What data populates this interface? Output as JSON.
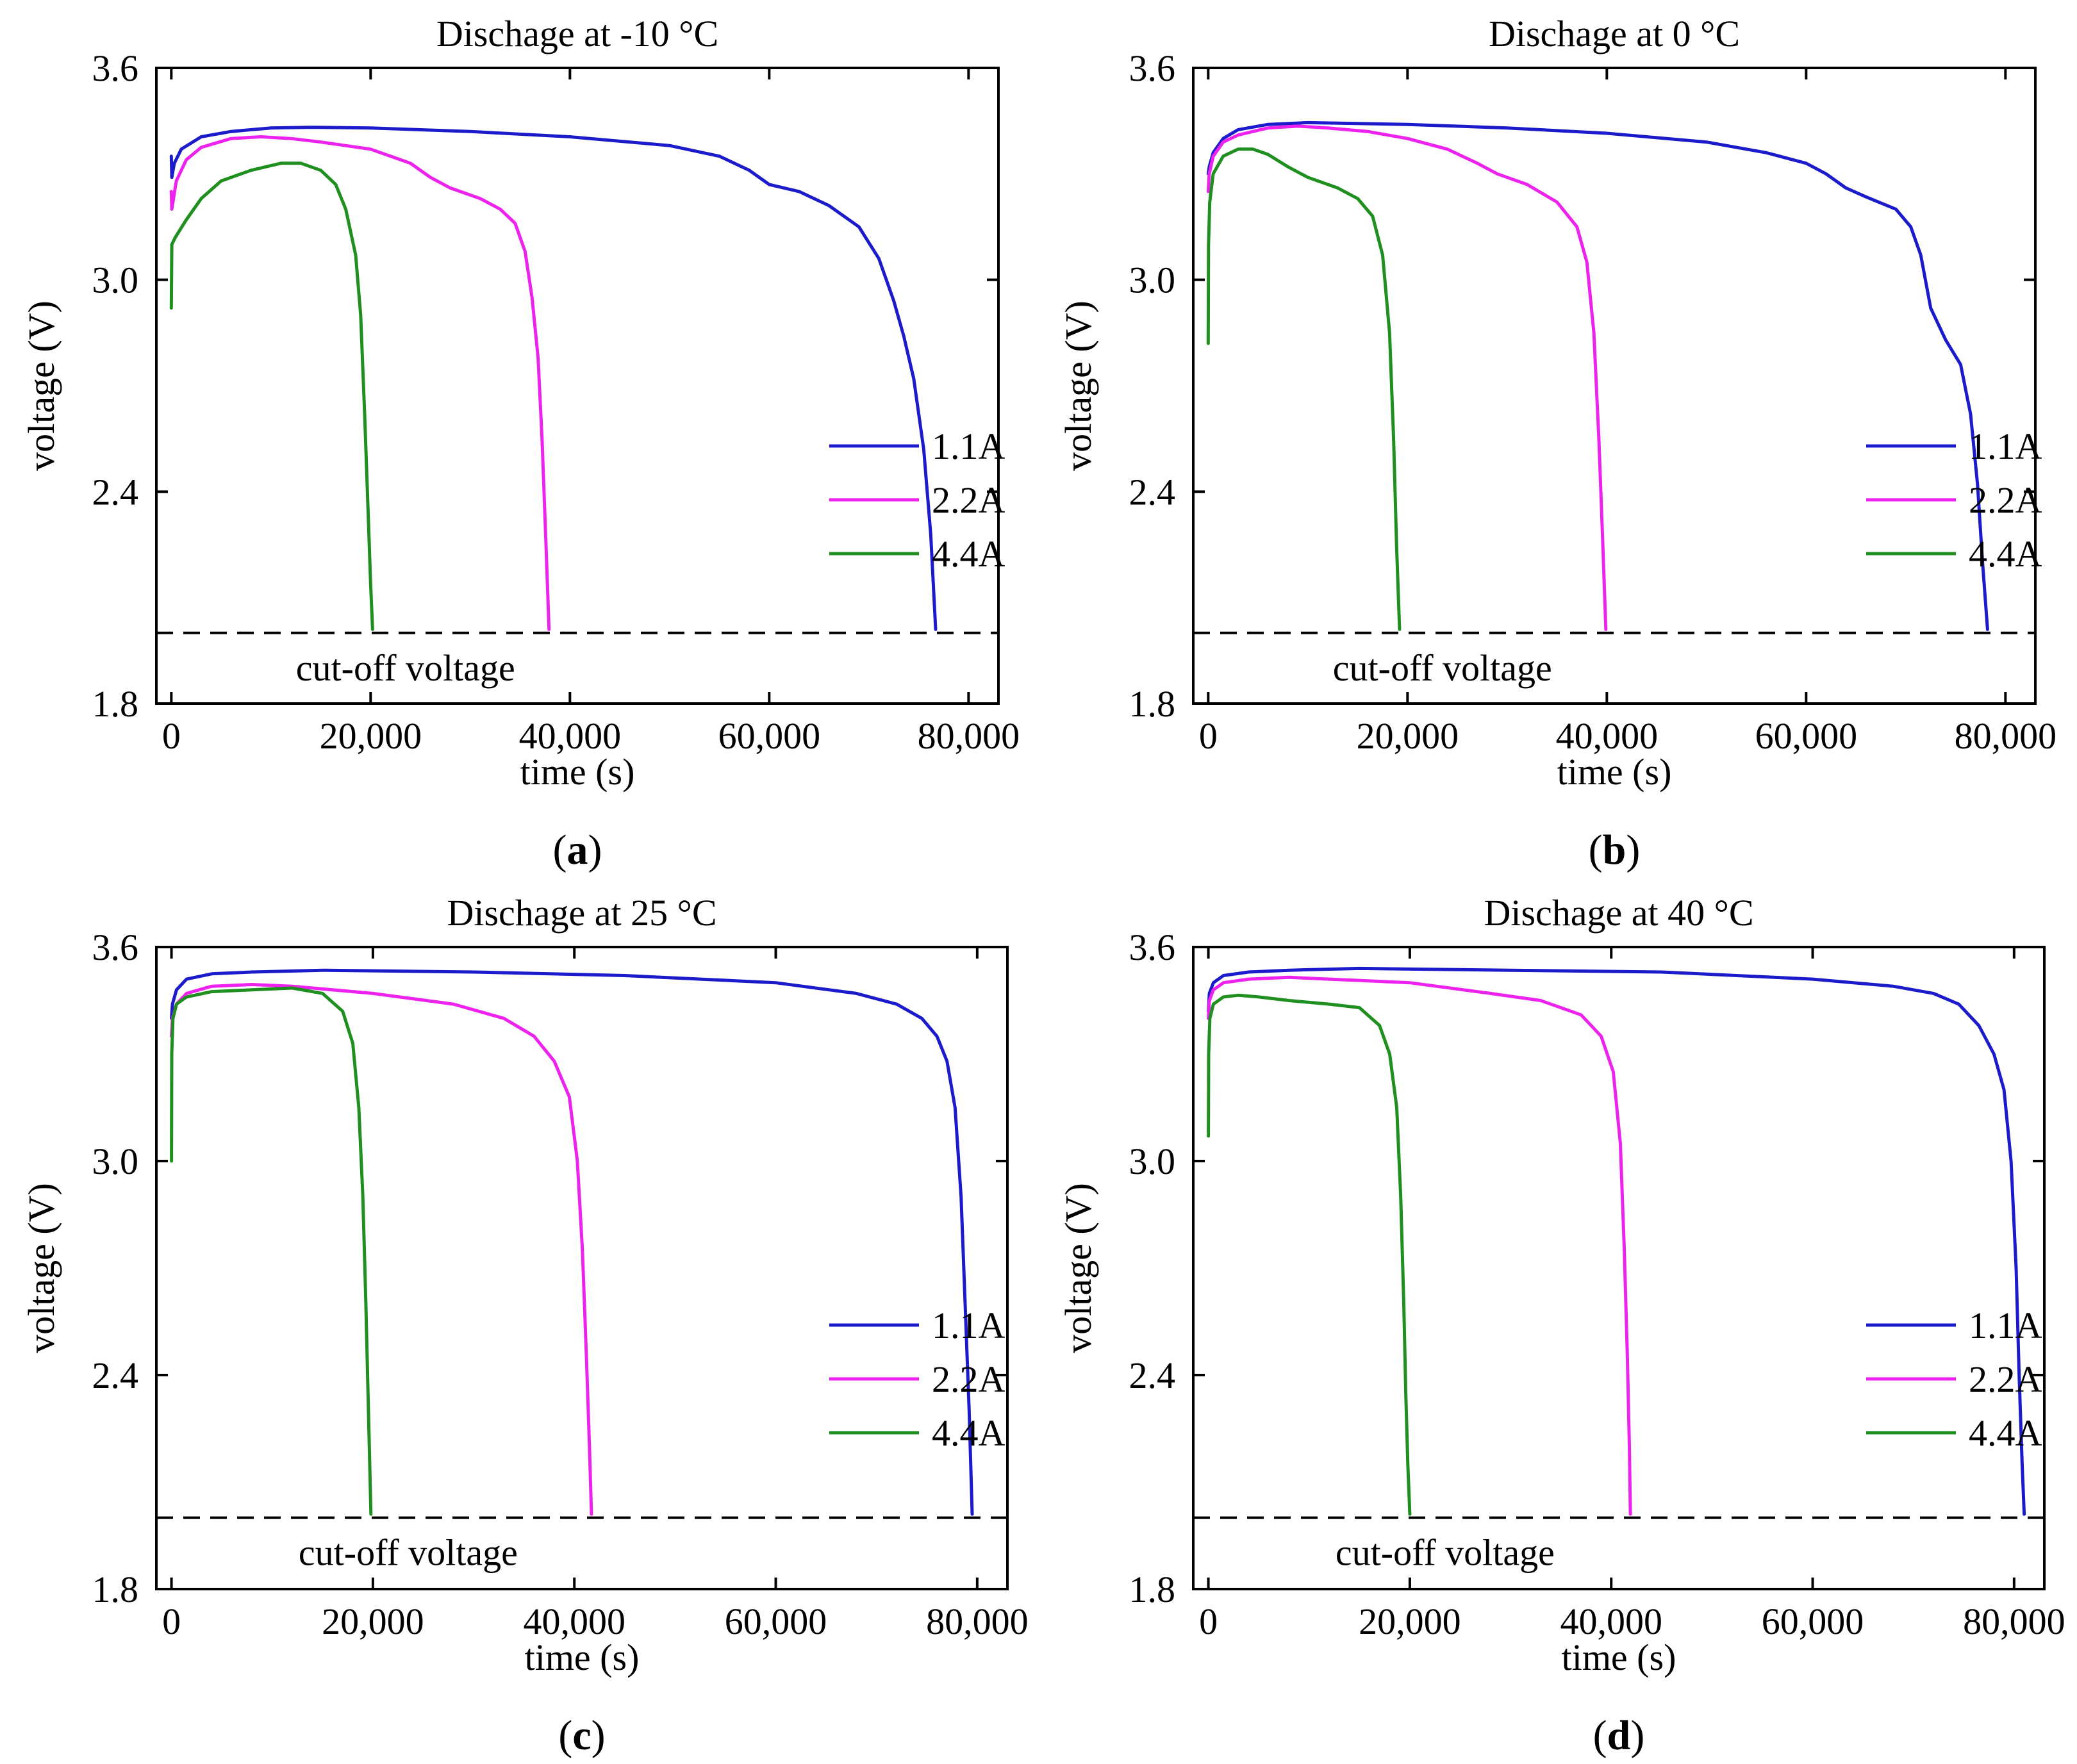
{
  "chart_data": [
    {
      "type": "line",
      "panel_label": "a",
      "title": "Dischage at -10 °C",
      "xlabel": "time (s)",
      "ylabel": "voltage (V)",
      "xlim": [
        -1500,
        83000
      ],
      "ylim": [
        1.8,
        3.6
      ],
      "xticks": [
        0,
        20000,
        40000,
        60000,
        80000
      ],
      "xtick_labels": [
        "0",
        "20,000",
        "40,000",
        "60,000",
        "80,000"
      ],
      "yticks": [
        1.8,
        2.4,
        3.0,
        3.6
      ],
      "ytick_labels": [
        "1.8",
        "2.4",
        "3.0",
        "3.6"
      ],
      "cutoff": {
        "value": 2.0,
        "label": "cut-off voltage"
      },
      "legend": "right",
      "series": [
        {
          "name": "1.1A",
          "color": "#1b1bcc",
          "x": [
            0,
            50,
            300,
            1000,
            3000,
            6000,
            10000,
            14000,
            20000,
            30000,
            40000,
            50000,
            55000,
            58000,
            60000,
            63000,
            66000,
            69000,
            71000,
            72500,
            73500,
            74500,
            75500,
            76200,
            76700
          ],
          "y": [
            3.35,
            3.29,
            3.33,
            3.37,
            3.405,
            3.42,
            3.43,
            3.432,
            3.43,
            3.42,
            3.405,
            3.38,
            3.35,
            3.31,
            3.27,
            3.25,
            3.21,
            3.15,
            3.06,
            2.94,
            2.84,
            2.72,
            2.52,
            2.28,
            2.01
          ]
        },
        {
          "name": "2.2A",
          "color": "#ee22ee",
          "x": [
            0,
            50,
            500,
            1500,
            3000,
            6000,
            9000,
            12000,
            15000,
            20000,
            24000,
            26000,
            28000,
            31000,
            33000,
            34500,
            35500,
            36200,
            36800,
            37200,
            37600,
            37900
          ],
          "y": [
            3.25,
            3.2,
            3.28,
            3.34,
            3.375,
            3.4,
            3.405,
            3.4,
            3.39,
            3.37,
            3.33,
            3.29,
            3.26,
            3.23,
            3.2,
            3.16,
            3.08,
            2.95,
            2.78,
            2.55,
            2.25,
            2.01
          ]
        },
        {
          "name": "4.4A",
          "color": "#1f8f1f",
          "x": [
            0,
            50,
            400,
            1500,
            3000,
            5000,
            8000,
            11000,
            13000,
            15000,
            16500,
            17500,
            18500,
            19000,
            19400,
            19700,
            20000,
            20200
          ],
          "y": [
            2.92,
            3.1,
            3.12,
            3.17,
            3.23,
            3.28,
            3.31,
            3.33,
            3.33,
            3.31,
            3.27,
            3.2,
            3.07,
            2.9,
            2.62,
            2.38,
            2.14,
            2.01
          ]
        }
      ]
    },
    {
      "type": "line",
      "panel_label": "b",
      "title": "Dischage at 0 °C",
      "xlabel": "time (s)",
      "ylabel": "voltage (V)",
      "xlim": [
        -1500,
        83000
      ],
      "ylim": [
        1.8,
        3.6
      ],
      "xticks": [
        0,
        20000,
        40000,
        60000,
        80000
      ],
      "xtick_labels": [
        "0",
        "20,000",
        "40,000",
        "60,000",
        "80,000"
      ],
      "yticks": [
        1.8,
        2.4,
        3.0,
        3.6
      ],
      "ytick_labels": [
        "1.8",
        "2.4",
        "3.0",
        "3.6"
      ],
      "cutoff": {
        "value": 2.0,
        "label": "cut-off voltage"
      },
      "legend": "right",
      "series": [
        {
          "name": "1.1A",
          "color": "#1b1bcc",
          "x": [
            0,
            100,
            500,
            1500,
            3000,
            6000,
            10000,
            20000,
            30000,
            40000,
            50000,
            56000,
            60000,
            62000,
            64000,
            66000,
            69000,
            70500,
            71500,
            72500,
            74000,
            75500,
            76500,
            77200,
            77700,
            78200
          ],
          "y": [
            3.3,
            3.32,
            3.36,
            3.4,
            3.425,
            3.44,
            3.445,
            3.44,
            3.43,
            3.415,
            3.39,
            3.36,
            3.33,
            3.3,
            3.26,
            3.235,
            3.2,
            3.15,
            3.07,
            2.92,
            2.83,
            2.76,
            2.62,
            2.42,
            2.2,
            2.01
          ]
        },
        {
          "name": "2.2A",
          "color": "#ee22ee",
          "x": [
            0,
            100,
            500,
            1500,
            3000,
            6000,
            9000,
            12000,
            16000,
            20000,
            24000,
            27000,
            29000,
            32000,
            35000,
            37000,
            38000,
            38700,
            39200,
            39600,
            39900
          ],
          "y": [
            3.25,
            3.3,
            3.35,
            3.39,
            3.41,
            3.43,
            3.435,
            3.43,
            3.42,
            3.4,
            3.37,
            3.33,
            3.3,
            3.27,
            3.22,
            3.15,
            3.05,
            2.85,
            2.55,
            2.25,
            2.01
          ]
        },
        {
          "name": "4.4A",
          "color": "#1f8f1f",
          "x": [
            0,
            30,
            150,
            500,
            1500,
            3000,
            4500,
            6000,
            8000,
            10000,
            13000,
            15000,
            16500,
            17500,
            18200,
            18600,
            18900,
            19200
          ],
          "y": [
            2.82,
            3.1,
            3.22,
            3.3,
            3.35,
            3.37,
            3.37,
            3.355,
            3.32,
            3.29,
            3.26,
            3.23,
            3.18,
            3.07,
            2.85,
            2.55,
            2.25,
            2.01
          ]
        }
      ]
    },
    {
      "type": "line",
      "panel_label": "c",
      "title": "Dischage at 25 °C",
      "xlabel": "time (s)",
      "ylabel": "voltage (V)",
      "xlim": [
        -1500,
        83000
      ],
      "ylim": [
        1.8,
        3.6
      ],
      "xticks": [
        0,
        20000,
        40000,
        60000,
        80000
      ],
      "xtick_labels": [
        "0",
        "20,000",
        "40,000",
        "60,000",
        "80,000"
      ],
      "yticks": [
        1.8,
        2.4,
        3.0,
        3.6
      ],
      "ytick_labels": [
        "1.8",
        "2.4",
        "3.0",
        "3.6"
      ],
      "cutoff": {
        "value": 2.0,
        "label": "cut-off voltage"
      },
      "legend": "right",
      "series": [
        {
          "name": "1.1A",
          "color": "#1b1bcc",
          "x": [
            0,
            100,
            500,
            1500,
            4000,
            8000,
            15000,
            30000,
            45000,
            60000,
            68000,
            72000,
            74500,
            76000,
            77000,
            77800,
            78400,
            78800,
            79200,
            79500
          ],
          "y": [
            3.4,
            3.44,
            3.48,
            3.51,
            3.525,
            3.53,
            3.535,
            3.53,
            3.52,
            3.5,
            3.47,
            3.44,
            3.4,
            3.35,
            3.28,
            3.15,
            2.9,
            2.6,
            2.3,
            2.01
          ]
        },
        {
          "name": "2.2A",
          "color": "#ee22ee",
          "x": [
            0,
            100,
            500,
            1500,
            4000,
            8000,
            12000,
            20000,
            28000,
            33000,
            36000,
            38000,
            39500,
            40300,
            40800,
            41200,
            41500,
            41700
          ],
          "y": [
            3.35,
            3.4,
            3.44,
            3.47,
            3.49,
            3.495,
            3.49,
            3.47,
            3.44,
            3.4,
            3.35,
            3.28,
            3.18,
            3.0,
            2.75,
            2.45,
            2.2,
            2.01
          ]
        },
        {
          "name": "4.4A",
          "color": "#1f8f1f",
          "x": [
            0,
            30,
            150,
            500,
            1500,
            4000,
            8000,
            12000,
            15000,
            17000,
            18000,
            18600,
            19000,
            19300,
            19600,
            19800
          ],
          "y": [
            3.0,
            3.3,
            3.4,
            3.44,
            3.46,
            3.475,
            3.48,
            3.485,
            3.47,
            3.42,
            3.33,
            3.15,
            2.9,
            2.6,
            2.25,
            2.01
          ]
        }
      ]
    },
    {
      "type": "line",
      "panel_label": "d",
      "title": "Dischage at 40 °C",
      "xlabel": "time (s)",
      "ylabel": "voltage (V)",
      "xlim": [
        -1500,
        83000
      ],
      "ylim": [
        1.8,
        3.6
      ],
      "xticks": [
        0,
        20000,
        40000,
        60000,
        80000
      ],
      "xtick_labels": [
        "0",
        "20,000",
        "40,000",
        "60,000",
        "80,000"
      ],
      "yticks": [
        1.8,
        2.4,
        3.0,
        3.6
      ],
      "ytick_labels": [
        "1.8",
        "2.4",
        "3.0",
        "3.6"
      ],
      "cutoff": {
        "value": 2.0,
        "label": "cut-off voltage"
      },
      "legend": "right",
      "series": [
        {
          "name": "1.1A",
          "color": "#1b1bcc",
          "x": [
            0,
            100,
            500,
            1500,
            4000,
            8000,
            15000,
            30000,
            45000,
            60000,
            68000,
            72000,
            74500,
            76500,
            78000,
            79000,
            79700,
            80200,
            80500,
            80800,
            81000
          ],
          "y": [
            3.42,
            3.47,
            3.5,
            3.52,
            3.53,
            3.535,
            3.54,
            3.535,
            3.53,
            3.51,
            3.49,
            3.47,
            3.44,
            3.38,
            3.3,
            3.2,
            3.0,
            2.7,
            2.4,
            2.15,
            2.01
          ]
        },
        {
          "name": "2.2A",
          "color": "#ee22ee",
          "x": [
            0,
            100,
            500,
            1500,
            4000,
            8000,
            12000,
            20000,
            28000,
            33000,
            37000,
            39000,
            40200,
            40900,
            41300,
            41600,
            41800,
            41900
          ],
          "y": [
            3.4,
            3.45,
            3.48,
            3.5,
            3.51,
            3.515,
            3.51,
            3.5,
            3.47,
            3.45,
            3.41,
            3.35,
            3.25,
            3.05,
            2.75,
            2.45,
            2.2,
            2.01
          ]
        },
        {
          "name": "4.4A",
          "color": "#1f8f1f",
          "x": [
            0,
            30,
            150,
            500,
            1500,
            3000,
            5000,
            8000,
            12000,
            15000,
            17000,
            18000,
            18700,
            19100,
            19400,
            19600,
            19800,
            20000
          ],
          "y": [
            3.07,
            3.3,
            3.4,
            3.44,
            3.46,
            3.465,
            3.46,
            3.45,
            3.44,
            3.43,
            3.38,
            3.3,
            3.15,
            2.9,
            2.6,
            2.35,
            2.15,
            2.01
          ]
        }
      ]
    }
  ]
}
